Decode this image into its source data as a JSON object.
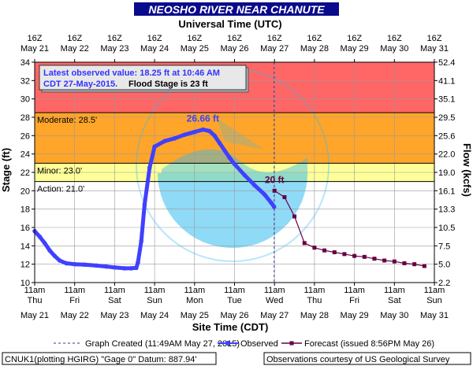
{
  "page": {
    "title": "NEOSHO RIVER NEAR CHANUTE",
    "top_axis_title": "Universal Time (UTC)",
    "bottom_axis_title": "Site Time (CDT)",
    "y_left_title": "Stage (ft)",
    "y_right_title": "Flow (kcfs)",
    "info_line1": "Latest observed value: 18.25 ft at 10:46 AM",
    "info_line2": "CDT 27-May-2015.",
    "info_line3": "Flood Stage is 23 ft",
    "legend_created": "Graph Created (11:49AM May 27, 2015)",
    "legend_observed": "Observed",
    "legend_forecast": "Forecast (issued 8:56PM May 26)",
    "footer_left": "CNUK1(plotting HGIRG) \"Gage 0\" Datum: 887.94'",
    "footer_right": "Observations courtesy of US Geological Survey",
    "watermark_text": "NATIONAL OCEANIC AND ATMOSPHERIC ADMINISTRATION · U.S. DEPARTMENT OF COMMERCE"
  },
  "colors": {
    "title_bg": "#0a0a8c",
    "major": "#ff6666",
    "moderate": "#ffa52a",
    "minor": "#ffff55",
    "action": "#ffff99",
    "observed": "#4040ff",
    "forecast": "#660044",
    "watermark": "#33bbee"
  },
  "chart_data": {
    "type": "line",
    "title": "NEOSHO RIVER NEAR CHANUTE",
    "ylabel": "Stage (ft)",
    "y2label": "Flow (kcfs)",
    "ylim": [
      10,
      34
    ],
    "y_ticks": [
      10,
      12,
      14,
      16,
      18,
      20,
      22,
      24,
      26,
      28,
      30,
      32,
      34
    ],
    "y2_ticks": [
      "2.2",
      "5.0",
      "7.5",
      "10.5",
      "13.3",
      "16.1",
      "19.0",
      "22.0",
      "25.6",
      "29.5",
      "35.1",
      "41.1",
      "52.4"
    ],
    "top_ticks": [
      {
        "line1": "16Z",
        "line2": "May 21"
      },
      {
        "line1": "16Z",
        "line2": "May 22"
      },
      {
        "line1": "16Z",
        "line2": "May 23"
      },
      {
        "line1": "16Z",
        "line2": "May 24"
      },
      {
        "line1": "16Z",
        "line2": "May 25"
      },
      {
        "line1": "16Z",
        "line2": "May 26"
      },
      {
        "line1": "16Z",
        "line2": "May 27"
      },
      {
        "line1": "16Z",
        "line2": "May 28"
      },
      {
        "line1": "16Z",
        "line2": "May 29"
      },
      {
        "line1": "16Z",
        "line2": "May 30"
      },
      {
        "line1": "16Z",
        "line2": "May 31"
      }
    ],
    "bottom_ticks": [
      {
        "time": "11am",
        "day": "Thu",
        "date": "May 21"
      },
      {
        "time": "11am",
        "day": "Fri",
        "date": "May 22"
      },
      {
        "time": "11am",
        "day": "Sat",
        "date": "May 23"
      },
      {
        "time": "11am",
        "day": "Sun",
        "date": "May 24"
      },
      {
        "time": "11am",
        "day": "Mon",
        "date": "May 25"
      },
      {
        "time": "11am",
        "day": "Tue",
        "date": "May 26"
      },
      {
        "time": "11am",
        "day": "Wed",
        "date": "May 27"
      },
      {
        "time": "11am",
        "day": "Thu",
        "date": "May 28"
      },
      {
        "time": "11am",
        "day": "Fri",
        "date": "May 29"
      },
      {
        "time": "11am",
        "day": "Sat",
        "date": "May 30"
      },
      {
        "time": "11am",
        "day": "Sun",
        "date": "May 31"
      }
    ],
    "xlim": [
      "2015-05-21 11:00",
      "2015-05-31 11:00"
    ],
    "x_unit": "CDT date-time",
    "grid": true,
    "bands": [
      {
        "name": "Major",
        "from": 28.5,
        "to": 34
      },
      {
        "name": "Moderate",
        "from": 23.0,
        "to": 28.5
      },
      {
        "name": "Minor",
        "from": 21.0,
        "to": 23.0
      },
      {
        "name": "Action",
        "from": 10,
        "to": 21.0
      }
    ],
    "thresholds": [
      {
        "label": "Moderate: 28.5'",
        "value": 28.5
      },
      {
        "label": "Minor: 23.0'",
        "value": 23.0
      },
      {
        "label": "Action: 21.0'",
        "value": 21.0
      }
    ],
    "created_at": "2015-05-27 10:49",
    "series": [
      {
        "name": "Observed",
        "x": [
          "2015-05-21 11:00",
          "2015-05-21 14:00",
          "2015-05-21 17:00",
          "2015-05-21 20:00",
          "2015-05-21 23:00",
          "2015-05-22 02:00",
          "2015-05-22 06:00",
          "2015-05-22 11:00",
          "2015-05-22 17:00",
          "2015-05-23 00:00",
          "2015-05-23 06:00",
          "2015-05-23 11:00",
          "2015-05-23 17:00",
          "2015-05-23 21:00",
          "2015-05-24 00:00",
          "2015-05-24 01:00",
          "2015-05-24 03:00",
          "2015-05-24 05:00",
          "2015-05-24 08:00",
          "2015-05-24 11:00",
          "2015-05-24 17:00",
          "2015-05-24 23:00",
          "2015-05-25 05:00",
          "2015-05-25 11:00",
          "2015-05-25 16:00",
          "2015-05-25 20:00",
          "2015-05-25 23:00",
          "2015-05-26 02:00",
          "2015-05-26 05:00",
          "2015-05-26 08:00",
          "2015-05-26 11:00",
          "2015-05-26 17:00",
          "2015-05-26 23:00",
          "2015-05-27 05:00",
          "2015-05-27 09:00",
          "2015-05-27 10:46"
        ],
        "values": [
          15.6,
          15.0,
          14.3,
          13.5,
          12.9,
          12.4,
          12.1,
          12.0,
          11.95,
          11.85,
          11.75,
          11.65,
          11.55,
          11.55,
          11.6,
          12.2,
          14.5,
          18.5,
          22.5,
          24.8,
          25.4,
          25.7,
          26.1,
          26.4,
          26.66,
          26.5,
          26.0,
          25.2,
          24.4,
          23.6,
          22.9,
          21.7,
          20.6,
          19.6,
          18.7,
          18.25
        ]
      },
      {
        "name": "Forecast",
        "x": [
          "2015-05-27 11:00",
          "2015-05-27 17:00",
          "2015-05-27 23:00",
          "2015-05-28 05:00",
          "2015-05-28 11:00",
          "2015-05-28 17:00",
          "2015-05-28 23:00",
          "2015-05-29 05:00",
          "2015-05-29 11:00",
          "2015-05-29 17:00",
          "2015-05-29 23:00",
          "2015-05-30 05:00",
          "2015-05-30 11:00",
          "2015-05-30 17:00",
          "2015-05-30 23:00",
          "2015-05-31 05:00"
        ],
        "values": [
          20.0,
          19.3,
          17.2,
          14.3,
          13.8,
          13.5,
          13.3,
          13.1,
          12.9,
          12.8,
          12.6,
          12.4,
          12.3,
          12.1,
          12.0,
          11.8
        ]
      }
    ],
    "annotations": [
      {
        "text": "26.66 ft",
        "x": "2015-05-25 16:00",
        "y": 26.66,
        "series": "Observed"
      },
      {
        "text": "20 ft",
        "x": "2015-05-27 11:00",
        "y": 20.0,
        "series": "Forecast"
      }
    ]
  }
}
